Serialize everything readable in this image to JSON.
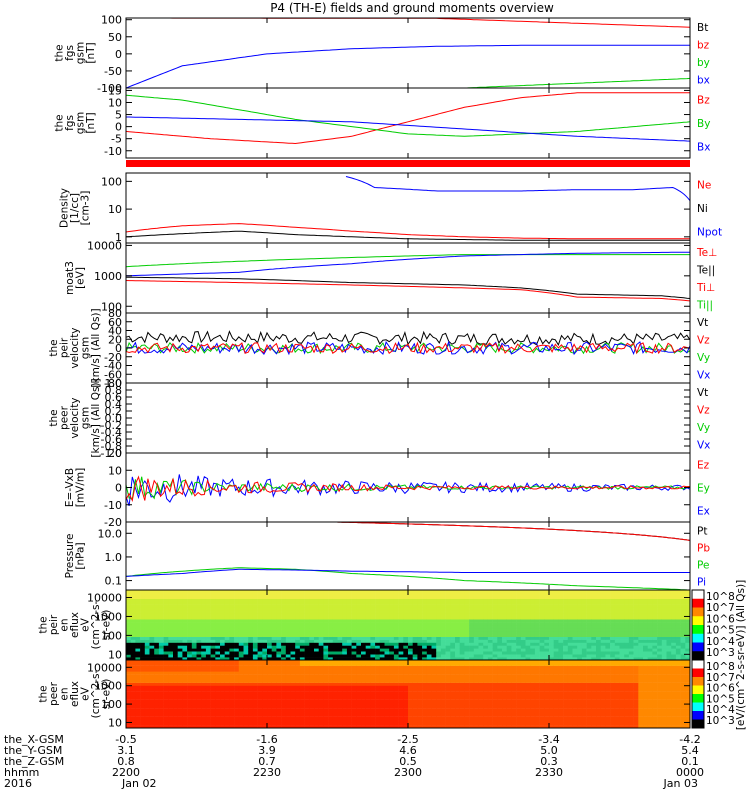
{
  "title": "P4 (TH-E) fields and ground moments overview",
  "colorbar_label": "[eV/(cm^2-s-sr-eV)] (All Qs)]",
  "colorbar_ticks": [
    "10^8",
    "10^7",
    "10^6",
    "10^5",
    "10^4",
    "10^3"
  ],
  "colorbar_ticks2": [
    "10^8",
    "10^7",
    "10^6",
    "10^5",
    "10^4",
    "10^3"
  ],
  "footer": {
    "row_labels": [
      "the_X-GSM",
      "the_Y-GSM",
      "the_Z-GSM",
      "hhmm",
      "2016"
    ],
    "columns": [
      {
        "values": [
          "-0.5",
          "3.1",
          "0.8",
          "2200",
          "Jan 02"
        ]
      },
      {
        "values": [
          "-1.6",
          "3.9",
          "0.7",
          "2230",
          ""
        ]
      },
      {
        "values": [
          "-2.5",
          "4.6",
          "0.5",
          "2300",
          ""
        ]
      },
      {
        "values": [
          "-3.4",
          "5.0",
          "0.3",
          "2330",
          ""
        ]
      },
      {
        "values": [
          "-4.2",
          "5.4",
          "0.1",
          "0000",
          "Jan 03"
        ]
      }
    ]
  },
  "chart_data": [
    {
      "type": "line",
      "ylabel": [
        "the",
        "fgs",
        "gsm",
        "[nT]"
      ],
      "yticks": [
        "100",
        "50",
        "0",
        "-50",
        "-100"
      ],
      "ytick_values": [
        100,
        50,
        0,
        -50,
        -100
      ],
      "ylim": [
        -100,
        105
      ],
      "legend": [
        {
          "name": "Bt",
          "color": "#000000"
        },
        {
          "name": "bz",
          "color": "#ff0000"
        },
        {
          "name": "by",
          "color": "#00cc00"
        },
        {
          "name": "bx",
          "color": "#0000ff"
        }
      ],
      "series": [
        {
          "name": "Bt",
          "color": "#000000",
          "x": [
            0,
            1
          ],
          "y": [
            105,
            105
          ]
        },
        {
          "name": "bz",
          "color": "#ff0000",
          "x": [
            0,
            0.55,
            1
          ],
          "y": [
            105,
            104,
            78
          ]
        },
        {
          "name": "by",
          "color": "#00cc00",
          "x": [
            0,
            0.3,
            0.6,
            1
          ],
          "y": [
            -102,
            -102,
            -100,
            -72
          ]
        },
        {
          "name": "bx",
          "color": "#0000ff",
          "x": [
            0,
            0.1,
            0.25,
            0.4,
            0.55,
            0.7,
            1
          ],
          "y": [
            -100,
            -35,
            0,
            15,
            22,
            25,
            25
          ]
        }
      ]
    },
    {
      "type": "line",
      "ylabel": [
        "the",
        "fgs",
        "gsm",
        "[nT]"
      ],
      "yticks": [
        "15",
        "10",
        "5",
        "0",
        "-5",
        "-10"
      ],
      "ytick_values": [
        15,
        10,
        5,
        0,
        -5,
        -10
      ],
      "ylim": [
        -13,
        16
      ],
      "legend": [
        {
          "name": "Bz",
          "color": "#ff0000"
        },
        {
          "name": "By",
          "color": "#00cc00"
        },
        {
          "name": "Bx",
          "color": "#0000ff"
        }
      ],
      "series": [
        {
          "name": "Bz",
          "color": "#ff0000",
          "x": [
            0,
            0.15,
            0.3,
            0.4,
            0.5,
            0.6,
            0.7,
            0.8,
            0.9,
            1
          ],
          "y": [
            -2,
            -5,
            -7,
            -4,
            2,
            8,
            12,
            14,
            14,
            14
          ]
        },
        {
          "name": "By",
          "color": "#00cc00",
          "x": [
            0,
            0.1,
            0.2,
            0.3,
            0.4,
            0.5,
            0.6,
            0.7,
            0.8,
            0.9,
            1
          ],
          "y": [
            13,
            11,
            7,
            3,
            0,
            -3,
            -4,
            -3,
            -2,
            0,
            2
          ]
        },
        {
          "name": "Bx",
          "color": "#0000ff",
          "x": [
            0,
            0.2,
            0.4,
            0.6,
            0.8,
            1
          ],
          "y": [
            4,
            3,
            2,
            -1,
            -4,
            -6
          ]
        }
      ]
    },
    {
      "type": "line",
      "ylabel": [
        "Density",
        "[1/cc]",
        "[cm-3]"
      ],
      "yticks": [
        "100",
        "10",
        "1"
      ],
      "ytick_values": [
        100,
        10,
        1
      ],
      "log": true,
      "ylim": [
        0.6,
        200
      ],
      "legend": [
        {
          "name": "Ne",
          "color": "#ff0000"
        },
        {
          "name": "Ni",
          "color": "#000000"
        },
        {
          "name": "Npot",
          "color": "#0000ff"
        }
      ],
      "series": [
        {
          "name": "Ne",
          "color": "#ff0000",
          "x": [
            0,
            0.1,
            0.2,
            0.3,
            0.4,
            0.5,
            0.6,
            0.7,
            0.8,
            0.9,
            1
          ],
          "y": [
            1.5,
            2.5,
            3.0,
            2.2,
            1.6,
            1.2,
            1.0,
            0.9,
            0.85,
            0.85,
            0.85
          ]
        },
        {
          "name": "Ni",
          "color": "#000000",
          "x": [
            0,
            0.1,
            0.2,
            0.3,
            0.4,
            0.5,
            0.6,
            0.7,
            0.8,
            0.9,
            1
          ],
          "y": [
            1.0,
            1.3,
            1.6,
            1.2,
            1.0,
            0.85,
            0.8,
            0.75,
            0.75,
            0.75,
            0.75
          ]
        },
        {
          "name": "Npot",
          "color": "#0000ff",
          "x": [
            0.39,
            0.44,
            0.55,
            0.7,
            0.8,
            0.9,
            0.97,
            1
          ],
          "y": [
            150,
            60,
            45,
            45,
            50,
            50,
            60,
            20
          ]
        }
      ]
    },
    {
      "type": "line",
      "ylabel": [
        "moat3",
        "[eV]"
      ],
      "yticks": [
        "10000",
        "1000",
        "100"
      ],
      "ytick_values": [
        10000,
        1000,
        100
      ],
      "log": true,
      "ylim": [
        60,
        12000
      ],
      "legend": [
        {
          "name": "Te⊥",
          "color": "#ff0000"
        },
        {
          "name": "Te||",
          "color": "#000000"
        },
        {
          "name": "Ti⊥",
          "color": "#ff0000"
        },
        {
          "name": "Ti||",
          "color": "#00cc00"
        }
      ],
      "series": [
        {
          "name": "Ti||",
          "color": "#00cc00",
          "x": [
            0,
            0.2,
            0.4,
            0.6,
            0.8,
            1
          ],
          "y": [
            2000,
            3000,
            4000,
            5000,
            5000,
            5000
          ]
        },
        {
          "name": "Te⊥",
          "color": "#0000ff",
          "x": [
            0,
            0.2,
            0.4,
            0.6,
            0.8,
            1
          ],
          "y": [
            1000,
            1300,
            2500,
            4500,
            5500,
            6000
          ]
        },
        {
          "name": "Ti⊥",
          "color": "#ff0000",
          "x": [
            0,
            0.2,
            0.4,
            0.6,
            0.7,
            0.8,
            0.95,
            1
          ],
          "y": [
            700,
            600,
            500,
            400,
            350,
            200,
            180,
            150
          ]
        },
        {
          "name": "Te||",
          "color": "#000000",
          "x": [
            0,
            0.2,
            0.4,
            0.6,
            0.7,
            0.8,
            0.95,
            1
          ],
          "y": [
            900,
            800,
            600,
            500,
            400,
            250,
            220,
            180
          ]
        }
      ]
    },
    {
      "type": "line",
      "ylabel": [
        "the",
        "peir",
        "velocity",
        "gsm",
        "[km/s] (All Qs)]"
      ],
      "yticks": [
        "80",
        "60",
        "40",
        "20",
        "0",
        "-20",
        "-40",
        "-60",
        "-80"
      ],
      "ytick_values": [
        80,
        60,
        40,
        20,
        0,
        -20,
        -40,
        -60,
        -80
      ],
      "ylim": [
        -80,
        80
      ],
      "legend": [
        {
          "name": "Vt",
          "color": "#000000"
        },
        {
          "name": "Vz",
          "color": "#ff0000"
        },
        {
          "name": "Vy",
          "color": "#00cc00"
        },
        {
          "name": "Vx",
          "color": "#0000ff"
        }
      ],
      "series": [
        {
          "name": "Vt",
          "color": "#000000",
          "x": [
            0,
            1
          ],
          "y": [
            25,
            20
          ],
          "noise": 14
        },
        {
          "name": "Vy",
          "color": "#00cc00",
          "x": [
            0,
            1
          ],
          "y": [
            0,
            0
          ],
          "noise": 12
        },
        {
          "name": "Vx",
          "color": "#0000ff",
          "x": [
            0,
            1
          ],
          "y": [
            0,
            0
          ],
          "noise": 14
        },
        {
          "name": "Vz",
          "color": "#ff0000",
          "x": [
            0,
            1
          ],
          "y": [
            0,
            0
          ],
          "noise": 12
        }
      ]
    },
    {
      "type": "line",
      "ylabel": [
        "the",
        "peer",
        "velocity",
        "gsm",
        "[km/s] (All Qs)]"
      ],
      "yticks": [
        "1.0",
        "0.8",
        "0.6",
        "0.4",
        "0.2",
        "0.0",
        "-0.2",
        "-0.4",
        "-0.6",
        "-0.8",
        "-1.0"
      ],
      "ytick_values": [
        1.0,
        0.8,
        0.6,
        0.4,
        0.2,
        0.0,
        -0.2,
        -0.4,
        -0.6,
        -0.8,
        -1.0
      ],
      "ylim": [
        -1.0,
        1.0
      ],
      "legend": [
        {
          "name": "Vt",
          "color": "#000000"
        },
        {
          "name": "Vz",
          "color": "#ff0000"
        },
        {
          "name": "Vy",
          "color": "#00cc00"
        },
        {
          "name": "Vx",
          "color": "#0000ff"
        }
      ],
      "series": []
    },
    {
      "type": "line",
      "ylabel": [
        "E=-VxB",
        "[mV/m]"
      ],
      "yticks": [
        "20",
        "10",
        "0",
        "-10",
        "-20"
      ],
      "ytick_values": [
        20,
        10,
        0,
        -10,
        -20
      ],
      "ylim": [
        -20,
        20
      ],
      "legend": [
        {
          "name": "Ez",
          "color": "#ff0000"
        },
        {
          "name": "Ey",
          "color": "#00cc00"
        },
        {
          "name": "Ex",
          "color": "#0000ff"
        }
      ],
      "series": [
        {
          "name": "Ex",
          "color": "#0000ff",
          "x": [
            0,
            0.15,
            0.4,
            0.6,
            1
          ],
          "y": [
            0,
            0,
            0,
            0,
            0
          ],
          "noise_profile": [
            12,
            6,
            4,
            3,
            1.5
          ]
        },
        {
          "name": "Ey",
          "color": "#00cc00",
          "x": [
            0,
            0.15,
            0.4,
            1
          ],
          "y": [
            0,
            0,
            0,
            0
          ],
          "noise_profile": [
            8,
            3,
            2,
            1
          ]
        },
        {
          "name": "Ez",
          "color": "#ff0000",
          "x": [
            0,
            0.15,
            0.4,
            1
          ],
          "y": [
            0,
            0,
            0,
            0
          ],
          "noise_profile": [
            9,
            4,
            2,
            1
          ]
        }
      ]
    },
    {
      "type": "line",
      "ylabel": [
        "Pressure",
        "[nPa]"
      ],
      "yticks": [
        "10.0",
        "1.0",
        "0.1"
      ],
      "ytick_values": [
        10,
        1,
        0.1
      ],
      "log": true,
      "ylim": [
        0.04,
        30
      ],
      "legend": [
        {
          "name": "Pt",
          "color": "#000000"
        },
        {
          "name": "Pb",
          "color": "#ff0000"
        },
        {
          "name": "Pe",
          "color": "#00cc00"
        },
        {
          "name": "Pi",
          "color": "#0000ff"
        }
      ],
      "series": [
        {
          "name": "Pt",
          "color": "#000000",
          "x": [
            0.37,
            1
          ],
          "y": [
            30,
            5
          ]
        },
        {
          "name": "Pb",
          "color": "#ff0000",
          "x": [
            0.37,
            1
          ],
          "y": [
            30,
            5
          ]
        },
        {
          "name": "Pe",
          "color": "#00cc00",
          "x": [
            0,
            0.1,
            0.2,
            0.3,
            0.4,
            0.6,
            0.8,
            1
          ],
          "y": [
            0.15,
            0.25,
            0.35,
            0.3,
            0.2,
            0.1,
            0.06,
            0.04
          ]
        },
        {
          "name": "Pi",
          "color": "#0000ff",
          "x": [
            0,
            0.1,
            0.2,
            0.3,
            0.4,
            0.6,
            0.8,
            1
          ],
          "y": [
            0.15,
            0.2,
            0.3,
            0.28,
            0.25,
            0.22,
            0.22,
            0.22
          ]
        }
      ]
    },
    {
      "type": "heatmap",
      "ylabel": [
        "the",
        "peir",
        "en",
        "eflux",
        "eV",
        "(cm^2-s-",
        "sr-eV)"
      ],
      "yticks": [
        "10000",
        "1000",
        "100",
        "10"
      ],
      "ytick_values": [
        10000,
        1000,
        100,
        10
      ]
    },
    {
      "type": "heatmap",
      "ylabel": [
        "the",
        "peer",
        "en",
        "eflux",
        "eV",
        "(cm^2-s-",
        "sr-eV)"
      ],
      "yticks": [
        "10000",
        "1000",
        "100",
        "10"
      ],
      "ytick_values": [
        10000,
        1000,
        100,
        10
      ]
    }
  ]
}
